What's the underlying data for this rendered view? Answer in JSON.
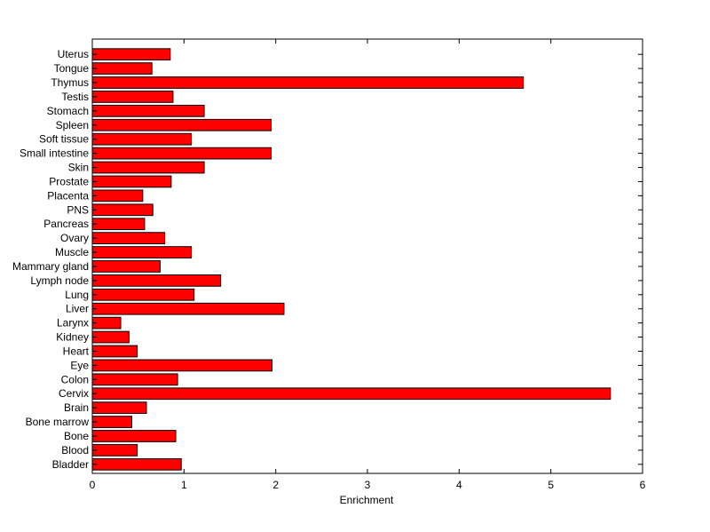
{
  "chart_data": {
    "type": "bar",
    "orientation": "horizontal",
    "title": "",
    "xlabel": "Enrichment",
    "ylabel": "",
    "xlim": [
      0,
      6
    ],
    "xticks": [
      0,
      1,
      2,
      3,
      4,
      5,
      6
    ],
    "grid": false,
    "bar_color": "#ff0000",
    "bar_edge_color": "#000000",
    "categories": [
      "Uterus",
      "Tongue",
      "Thymus",
      "Testis",
      "Stomach",
      "Spleen",
      "Soft tissue",
      "Small intestine",
      "Skin",
      "Prostate",
      "Placenta",
      "PNS",
      "Pancreas",
      "Ovary",
      "Muscle",
      "Mammary gland",
      "Lymph node",
      "Lung",
      "Liver",
      "Larynx",
      "Kidney",
      "Heart",
      "Eye",
      "Colon",
      "Cervix",
      "Brain",
      "Bone marrow",
      "Bone",
      "Blood",
      "Bladder"
    ],
    "values": [
      0.85,
      0.65,
      4.7,
      0.88,
      1.22,
      1.95,
      1.08,
      1.95,
      1.22,
      0.86,
      0.55,
      0.66,
      0.57,
      0.79,
      1.08,
      0.74,
      1.4,
      1.11,
      2.09,
      0.31,
      0.4,
      0.49,
      1.96,
      0.93,
      5.65,
      0.59,
      0.43,
      0.91,
      0.49,
      0.97
    ]
  }
}
